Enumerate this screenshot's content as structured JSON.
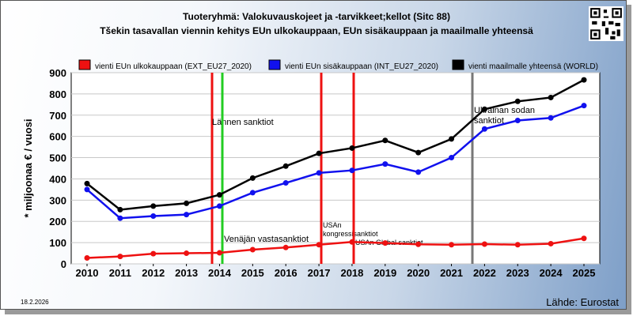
{
  "header": {
    "title": "Tuoteryhmä: Valokuvauskojeet ja -tarvikkeet;kellot (Sitc 88)",
    "subtitle": "Tšekin tasavallan viennin kehitys EUn ulkokauppaan, EUn sisäkauppaan ja maailmalle yhteensä"
  },
  "footer": {
    "date": "18.2.2026",
    "source": "Lähde: Eurostat"
  },
  "chart_data": {
    "type": "line",
    "x": [
      2010,
      2011,
      2012,
      2013,
      2014,
      2015,
      2016,
      2017,
      2018,
      2019,
      2020,
      2021,
      2022,
      2023,
      2024,
      2025
    ],
    "ylabel": "* miljoonaa € / vuosi",
    "ylim": [
      0,
      900
    ],
    "yticks": [
      0,
      100,
      200,
      300,
      400,
      500,
      600,
      700,
      800,
      900
    ],
    "grid": true,
    "legend_position": "top",
    "series": [
      {
        "name": "vienti EUn ulkokauppaan (EXT_EU27_2020)",
        "color": "#ee1111",
        "values": [
          28,
          35,
          48,
          50,
          52,
          67,
          77,
          90,
          103,
          98,
          92,
          90,
          93,
          90,
          95,
          120
        ]
      },
      {
        "name": "vienti EUn sisäkauppaan (INT_EU27_2020)",
        "color": "#1111ee",
        "values": [
          350,
          215,
          225,
          232,
          272,
          335,
          381,
          428,
          440,
          470,
          432,
          500,
          635,
          675,
          687,
          745
        ]
      },
      {
        "name": "vienti maailmalle yhteensä (WORLD)",
        "color": "#000000",
        "values": [
          378,
          255,
          272,
          285,
          325,
          404,
          460,
          520,
          545,
          581,
          524,
          588,
          728,
          765,
          783,
          866
        ]
      }
    ],
    "annotations": [
      {
        "label": "Lännen sanktiot",
        "x": 2014,
        "color": "#ee1111"
      },
      {
        "label": "Venäjän vastasanktiot",
        "x": 2014,
        "color": "#22cc22"
      },
      {
        "label": "USAn kongressisanktiot",
        "x": 2017,
        "color": "#ee1111"
      },
      {
        "label": "USAn Global sanktiot",
        "x": 2018,
        "color": "#ee1111"
      },
      {
        "label": "Ukrainan sodan sanktiot",
        "x": 2022,
        "color": "#777777"
      }
    ]
  }
}
